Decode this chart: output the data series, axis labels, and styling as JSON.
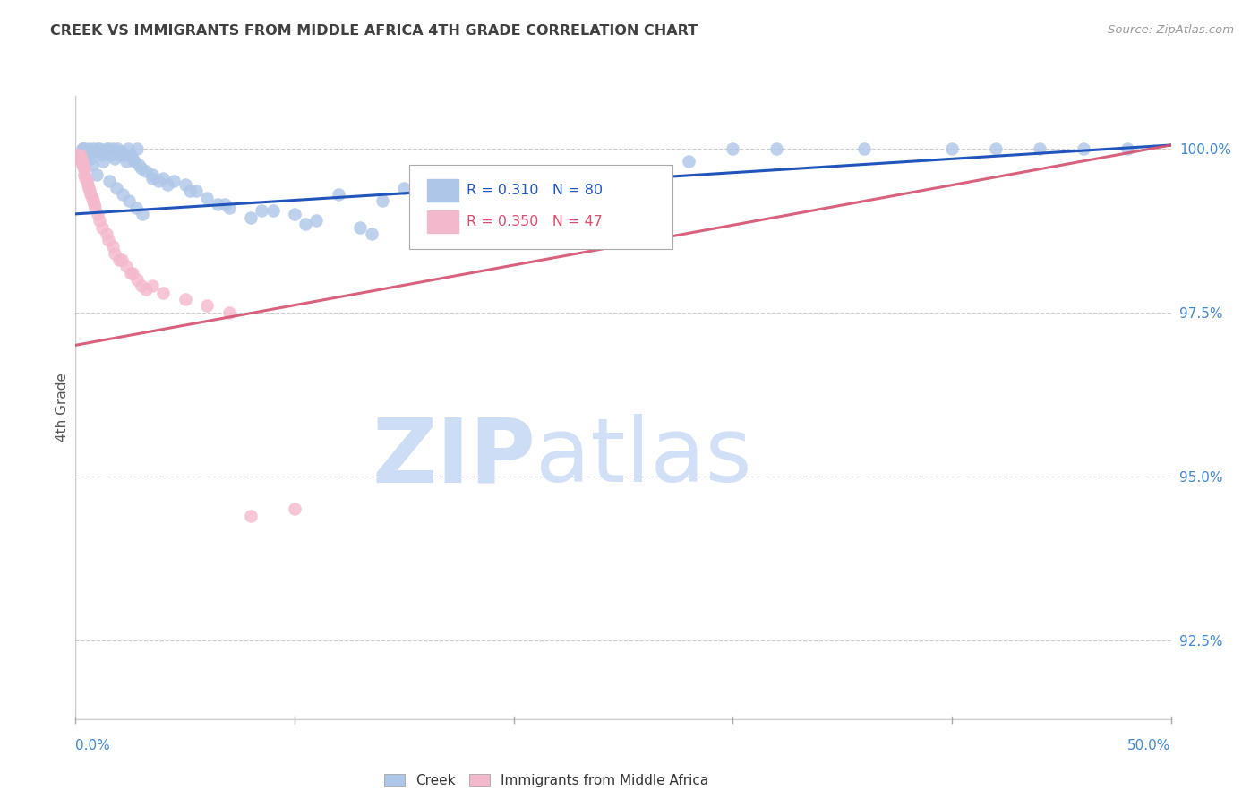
{
  "title": "CREEK VS IMMIGRANTS FROM MIDDLE AFRICA 4TH GRADE CORRELATION CHART",
  "source": "Source: ZipAtlas.com",
  "ylabel": "4th Grade",
  "yticks": [
    92.5,
    95.0,
    97.5,
    100.0
  ],
  "ytick_labels": [
    "92.5%",
    "95.0%",
    "97.5%",
    "100.0%"
  ],
  "xmin": 0.0,
  "xmax": 50.0,
  "ymin": 91.3,
  "ymax": 100.8,
  "legend_creek": "Creek",
  "legend_immigrants": "Immigrants from Middle Africa",
  "r_creek": "R = 0.310",
  "n_creek": "N = 80",
  "r_immigrants": "R = 0.350",
  "n_immigrants": "N = 47",
  "creek_color": "#aec6e8",
  "creek_edge_color": "#aec6e8",
  "creek_line_color": "#2255bb",
  "immigrant_color": "#f4b8cc",
  "immigrant_edge_color": "#f4b8cc",
  "immigrant_line_color": "#d45070",
  "watermark_zip_color": "#ccddf0",
  "watermark_atlas_color": "#b8d0ec",
  "title_color": "#404040",
  "axis_color": "#4488cc",
  "grid_color": "#cccccc",
  "creek_scatter_x": [
    0.2,
    0.3,
    0.4,
    0.5,
    0.6,
    0.7,
    0.8,
    0.9,
    1.0,
    1.1,
    1.2,
    1.3,
    1.4,
    1.5,
    1.6,
    1.7,
    1.8,
    1.9,
    2.0,
    2.1,
    2.2,
    2.3,
    2.4,
    2.5,
    2.6,
    2.7,
    2.8,
    2.9,
    3.0,
    3.2,
    3.5,
    3.8,
    4.0,
    4.5,
    5.0,
    5.5,
    6.0,
    6.5,
    7.0,
    8.0,
    9.0,
    10.0,
    11.0,
    12.0,
    13.0,
    14.0,
    15.0,
    17.0,
    19.0,
    22.0,
    25.0,
    28.0,
    32.0,
    36.0,
    40.0,
    44.0,
    48.0,
    0.35,
    0.55,
    0.75,
    0.95,
    1.25,
    1.55,
    1.85,
    2.15,
    2.45,
    2.75,
    3.05,
    3.5,
    4.2,
    5.2,
    6.8,
    8.5,
    10.5,
    13.5,
    16.0,
    20.0,
    30.0,
    42.0,
    46.0
  ],
  "creek_scatter_y": [
    99.9,
    100.0,
    100.0,
    99.9,
    100.0,
    99.85,
    100.0,
    99.95,
    100.0,
    100.0,
    99.9,
    99.95,
    100.0,
    100.0,
    99.9,
    100.0,
    99.85,
    100.0,
    99.9,
    99.95,
    99.9,
    99.8,
    100.0,
    99.9,
    99.85,
    99.8,
    100.0,
    99.75,
    99.7,
    99.65,
    99.6,
    99.5,
    99.55,
    99.5,
    99.45,
    99.35,
    99.25,
    99.15,
    99.1,
    98.95,
    99.05,
    99.0,
    98.9,
    99.3,
    98.8,
    99.2,
    99.4,
    99.1,
    99.2,
    98.7,
    99.6,
    99.8,
    100.0,
    100.0,
    100.0,
    100.0,
    100.0,
    100.0,
    99.9,
    99.75,
    99.6,
    99.8,
    99.5,
    99.4,
    99.3,
    99.2,
    99.1,
    99.0,
    99.55,
    99.45,
    99.35,
    99.15,
    99.05,
    98.85,
    98.7,
    98.6,
    99.5,
    100.0,
    100.0,
    100.0
  ],
  "immigrant_scatter_x": [
    0.05,
    0.08,
    0.1,
    0.12,
    0.15,
    0.18,
    0.2,
    0.22,
    0.25,
    0.28,
    0.3,
    0.32,
    0.35,
    0.38,
    0.4,
    0.45,
    0.5,
    0.55,
    0.6,
    0.65,
    0.7,
    0.75,
    0.8,
    0.85,
    0.9,
    1.0,
    1.1,
    1.2,
    1.5,
    1.8,
    2.0,
    2.3,
    2.6,
    2.8,
    3.0,
    3.5,
    4.0,
    5.0,
    6.0,
    7.0,
    8.0,
    10.0,
    3.2,
    1.4,
    1.7,
    2.1,
    2.5
  ],
  "immigrant_scatter_y": [
    99.85,
    99.9,
    99.85,
    99.88,
    99.9,
    99.85,
    99.9,
    99.85,
    99.88,
    99.82,
    99.8,
    99.75,
    99.72,
    99.68,
    99.6,
    99.55,
    99.5,
    99.45,
    99.4,
    99.35,
    99.3,
    99.25,
    99.2,
    99.15,
    99.1,
    99.0,
    98.9,
    98.8,
    98.6,
    98.4,
    98.3,
    98.2,
    98.1,
    98.0,
    97.9,
    97.9,
    97.8,
    97.7,
    97.6,
    97.5,
    94.4,
    94.5,
    97.85,
    98.7,
    98.5,
    98.3,
    98.1
  ],
  "creek_trend_x": [
    0.0,
    50.0
  ],
  "creek_trend_y": [
    99.0,
    100.05
  ],
  "immigrant_trend_x": [
    0.0,
    50.0
  ],
  "immigrant_trend_y": [
    97.0,
    100.05
  ]
}
